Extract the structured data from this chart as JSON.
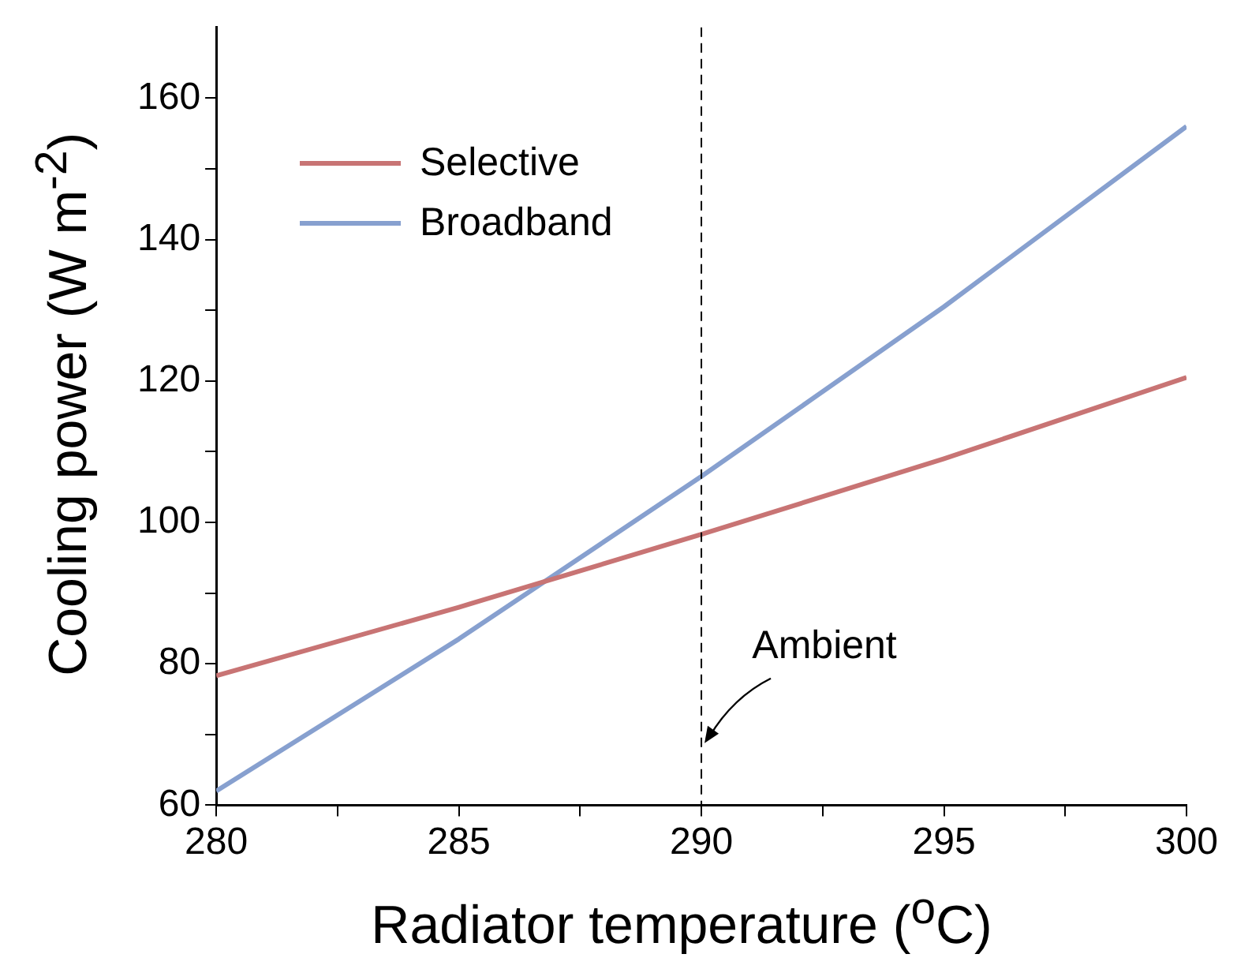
{
  "chart_data": {
    "type": "line",
    "xlabel": "Radiator temperature ($^{o}$C)",
    "ylabel": "Cooling power (W m$^{-2}$)",
    "x": [
      280,
      285,
      290,
      295,
      300
    ],
    "series": [
      {
        "name": "Selective",
        "color": "#c87474",
        "values": [
          78.3,
          88,
          98.3,
          109,
          120.5
        ]
      },
      {
        "name": "Broadband",
        "color": "#87a0cf",
        "values": [
          62,
          83.5,
          106.5,
          130.5,
          156
        ]
      }
    ],
    "xlim": [
      280,
      300
    ],
    "xticks": [
      280,
      {
        "value": 282.5,
        "label": null
      },
      285,
      {
        "value": 287.5,
        "label": null
      },
      290,
      {
        "value": 292.5,
        "label": null
      },
      295,
      {
        "value": 297.5,
        "label": null
      },
      300
    ],
    "ylim": [
      60,
      170
    ],
    "yticks": [
      60,
      {
        "value": 70,
        "label": null
      },
      80,
      {
        "value": 90,
        "label": null
      },
      100,
      {
        "value": 110,
        "label": null
      },
      120,
      {
        "value": 130,
        "label": null
      },
      140,
      {
        "value": 150,
        "label": null
      },
      160
    ],
    "ref_lines": [
      {
        "axis": "x",
        "value": 290,
        "color": "#000000",
        "line_style": "dashed"
      }
    ],
    "annotations": [
      {
        "text": "Ambient",
        "x": 290,
        "y": 69
      }
    ],
    "legend": "top left",
    "grid": false,
    "marker": "none",
    "line_style": "solid"
  }
}
